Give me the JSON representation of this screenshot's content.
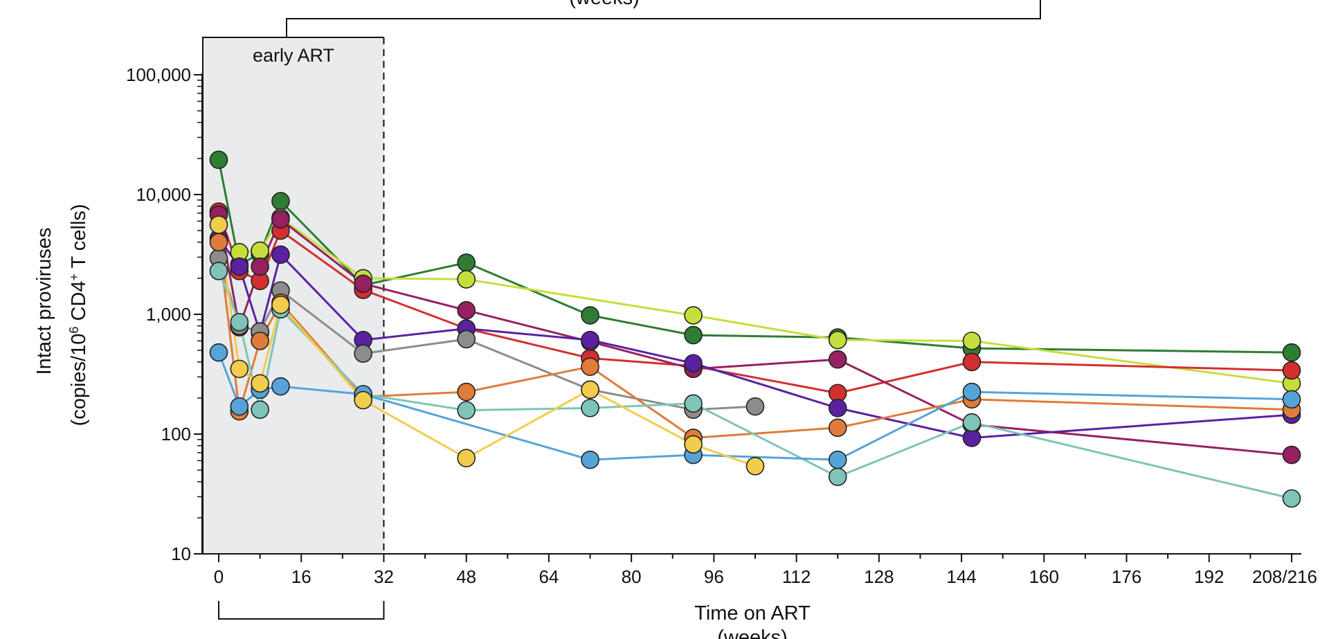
{
  "chart_data": {
    "type": "line",
    "y_scale": "log",
    "ylim": [
      10,
      100000
    ],
    "xlim": [
      0,
      208
    ],
    "y_ticks": [
      10,
      100,
      1000,
      10000,
      100000
    ],
    "y_tick_labels": [
      "10",
      "100",
      "1,000",
      "10,000",
      "100,000"
    ],
    "x_ticks": [
      0,
      16,
      32,
      48,
      64,
      80,
      96,
      112,
      128,
      144,
      160,
      176,
      192,
      208
    ],
    "x_tick_labels": [
      "0",
      "16",
      "32",
      "48",
      "64",
      "80",
      "96",
      "112",
      "128",
      "144",
      "160",
      "176",
      "192",
      "208/216"
    ],
    "ylabel_line1": "Intact proviruses",
    "ylabel_line2": "(copies/10",
    "ylabel_sup1": "6",
    "ylabel_mid": " CD4",
    "ylabel_sup2": "+",
    "ylabel_end": " T cells)",
    "xlabel_line1": "Time on ART",
    "xlabel_line2": "(weeks)",
    "top_bracket_label": "(weeks)",
    "region_label": "early ART",
    "region_range": [
      0,
      32
    ],
    "series": [
      {
        "name": "dark green",
        "color": "#2e7d32",
        "x": [
          0,
          4,
          8,
          12,
          28,
          48,
          72,
          92,
          120,
          146,
          208
        ],
        "y": [
          19500,
          2600,
          3200,
          8800,
          1750,
          2700,
          980,
          670,
          640,
          520,
          480
        ]
      },
      {
        "name": "yellow-green",
        "color": "#c5de3b",
        "x": [
          4,
          8,
          12,
          28,
          48,
          92,
          120,
          146,
          208
        ],
        "y": [
          3300,
          3400,
          6400,
          2000,
          1960,
          980,
          610,
          600,
          265
        ]
      },
      {
        "name": "red",
        "color": "#d32f2f",
        "x": [
          0,
          4,
          8,
          12,
          28,
          48,
          72,
          92,
          120,
          146,
          208
        ],
        "y": [
          7200,
          2300,
          1900,
          5000,
          1600,
          760,
          430,
          370,
          220,
          400,
          340
        ]
      },
      {
        "name": "maroon",
        "color": "#962060",
        "x": [
          0,
          4,
          8,
          12,
          28,
          48,
          72,
          92,
          120,
          146,
          208
        ],
        "y": [
          6800,
          780,
          2500,
          6200,
          1800,
          1080,
          590,
          350,
          420,
          120,
          67
        ]
      },
      {
        "name": "purple",
        "color": "#5b21a1",
        "x": [
          0,
          4,
          8,
          12,
          28,
          48,
          72,
          92,
          120,
          146,
          208
        ],
        "y": [
          4300,
          2500,
          700,
          3150,
          610,
          760,
          610,
          390,
          165,
          93,
          145
        ]
      },
      {
        "name": "gray",
        "color": "#8c8c8c",
        "x": [
          0,
          4,
          8,
          12,
          28,
          48,
          72,
          92,
          104
        ],
        "y": [
          2950,
          800,
          720,
          1580,
          470,
          620,
          235,
          160,
          170
        ]
      },
      {
        "name": "orange",
        "color": "#e07b39",
        "x": [
          0,
          4,
          8,
          12,
          28,
          48,
          72,
          92,
          120,
          146,
          208
        ],
        "y": [
          4000,
          155,
          600,
          1250,
          205,
          225,
          365,
          93,
          113,
          195,
          160
        ]
      },
      {
        "name": "teal",
        "color": "#7ec4b8",
        "x": [
          0,
          4,
          8,
          12,
          28,
          48,
          72,
          92,
          120,
          146,
          208
        ],
        "y": [
          2300,
          860,
          160,
          1100,
          215,
          158,
          165,
          180,
          44,
          125,
          29
        ]
      },
      {
        "name": "blue",
        "color": "#56a3d8",
        "x": [
          0,
          4,
          8,
          12,
          28,
          72,
          92,
          120,
          146,
          208
        ],
        "y": [
          480,
          170,
          235,
          250,
          215,
          61,
          67,
          61,
          225,
          195
        ]
      },
      {
        "name": "gold",
        "color": "#f2cc4c",
        "x": [
          0,
          4,
          8,
          12,
          28,
          48,
          72,
          92,
          104
        ],
        "y": [
          5600,
          350,
          265,
          1200,
          192,
          63,
          235,
          82,
          54
        ]
      }
    ]
  }
}
